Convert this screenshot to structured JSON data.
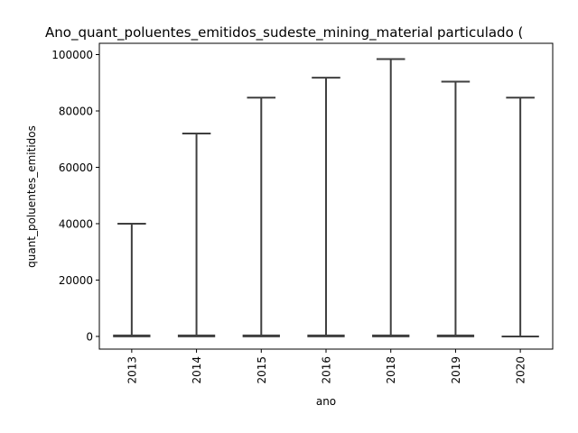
{
  "chart_data": {
    "type": "box",
    "title": "Ano_quant_poluentes_emitidos_sudeste_mining_material particulado (",
    "xlabel": "ano",
    "ylabel": "quant_poluentes_emitidos",
    "categories": [
      "2013",
      "2014",
      "2015",
      "2016",
      "2018",
      "2019",
      "2020"
    ],
    "whisker_max": [
      40000,
      72000,
      84700,
      91800,
      98400,
      90400,
      84700
    ],
    "whisker_min": [
      0,
      0,
      0,
      0,
      0,
      0,
      0
    ],
    "median": [
      200,
      200,
      200,
      200,
      200,
      200,
      0
    ],
    "yticks": [
      0,
      20000,
      40000,
      60000,
      80000,
      100000
    ],
    "ytick_labels": [
      "0",
      "20000",
      "40000",
      "60000",
      "80000",
      "100000"
    ],
    "ylim": [
      -4500,
      104000
    ],
    "grid": false,
    "colors": {
      "box": "#3f3f3f",
      "axis": "#000000"
    }
  }
}
